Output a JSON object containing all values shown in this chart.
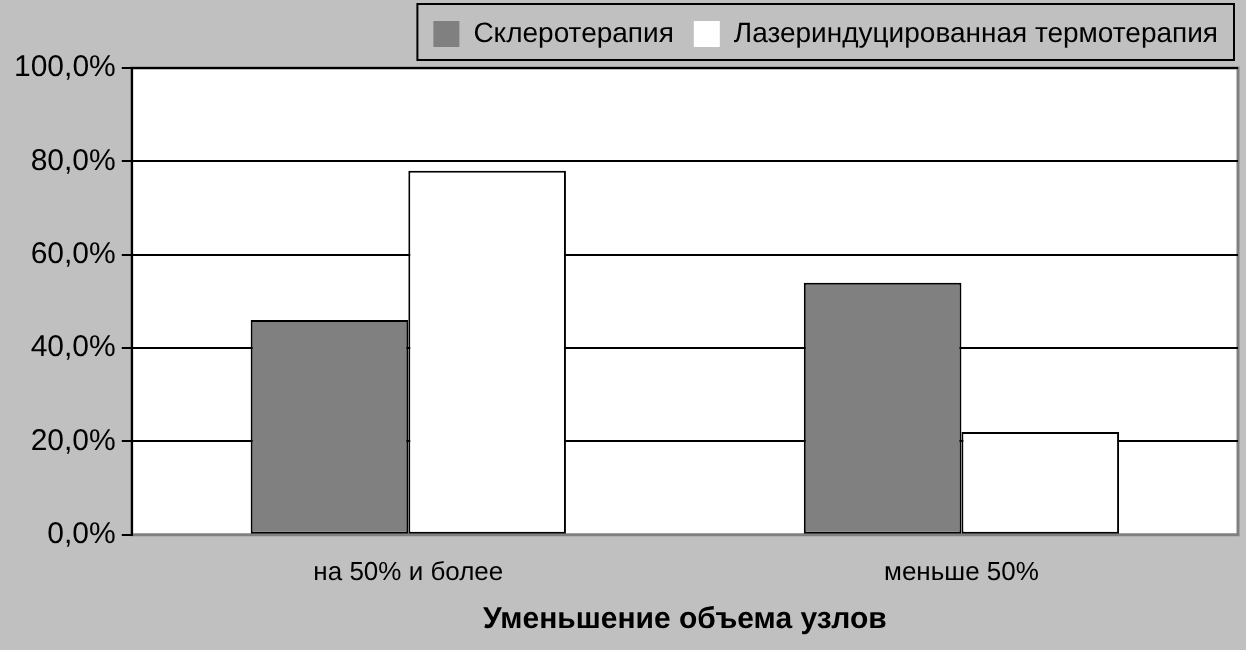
{
  "chart_data": {
    "type": "bar",
    "xlabel": "Уменьшение объема узлов",
    "categories": [
      "на 50% и более",
      "меньше 50%"
    ],
    "series": [
      {
        "name": "Склеротерапия",
        "color": "#808080",
        "values": [
          46,
          54
        ]
      },
      {
        "name": "Лазериндуцированная термотерапия",
        "color": "#ffffff",
        "values": [
          78,
          22
        ]
      }
    ],
    "ylim": [
      0,
      100
    ],
    "yticks": [
      {
        "value": 0,
        "label": "0,0%"
      },
      {
        "value": 20,
        "label": "20,0%"
      },
      {
        "value": 40,
        "label": "40,0%"
      },
      {
        "value": 60,
        "label": "60,0%"
      },
      {
        "value": 80,
        "label": "80,0%"
      },
      {
        "value": 100,
        "label": "100,0%"
      }
    ],
    "grid": "y",
    "legend": "top"
  }
}
